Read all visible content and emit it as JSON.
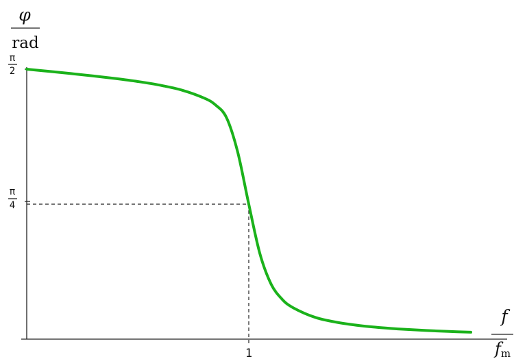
{
  "chart_data": {
    "type": "line",
    "title": "",
    "y_axis": {
      "label_numerator": "φ",
      "label_denominator": "rad",
      "ticks": [
        {
          "value": 0.7853981634,
          "label_num": "π",
          "label_den": "4"
        },
        {
          "value": 1.5707963268,
          "label_num": "π",
          "label_den": "2"
        }
      ],
      "ylim": [
        0,
        1.5707963268
      ]
    },
    "x_axis": {
      "label_numerator": "f",
      "label_denominator": "f",
      "label_denominator_sub": "m",
      "ticks": [
        {
          "value": 1,
          "label": "1"
        }
      ],
      "xlim": [
        0,
        2.06
      ]
    },
    "series": [
      {
        "color": "#1bb21b",
        "model": "phase response φ = atan(1 / (Q·(r − 1/r))) for r < 1, π − … beyond; Q ≈ 8",
        "x": [
          0.0,
          0.1,
          0.2,
          0.3,
          0.4,
          0.5,
          0.6,
          0.7,
          0.8,
          0.85,
          0.9,
          0.95,
          1.0,
          1.05,
          1.1,
          1.15,
          1.2,
          1.3,
          1.4,
          1.5,
          1.6,
          1.7,
          1.8,
          1.9,
          2.0
        ],
        "y": [
          1.5708,
          1.5582,
          1.5452,
          1.5315,
          1.5164,
          1.4991,
          1.4778,
          1.4486,
          1.4021,
          1.3629,
          1.288,
          1.0892,
          0.7854,
          0.4978,
          0.3216,
          0.2323,
          0.1826,
          0.1263,
          0.0971,
          0.0788,
          0.0663,
          0.0571,
          0.0501,
          0.0446,
          0.0402
        ]
      }
    ],
    "guides": [
      {
        "x": 1,
        "y": 0.7853981634
      }
    ],
    "grid": false,
    "legend": "none"
  }
}
